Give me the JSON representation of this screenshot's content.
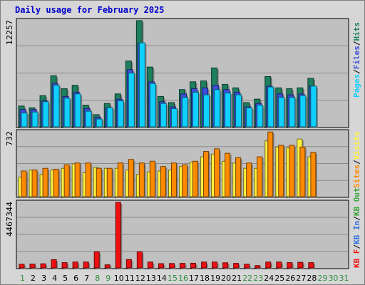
{
  "title": "Daily usage for February 2025",
  "colors": {
    "background": "#d6d6d6",
    "plot": "#c0c0c0",
    "title": "#0000cc",
    "hits": "#1e7f5f",
    "files": "#3d4ddb",
    "pages": "#10d0ff",
    "visits": "#fff23c",
    "sites": "#ff8a00",
    "kbin": "#2f6fdf",
    "kbout": "#3aa53a",
    "kbf": "#ee1010",
    "day_normal": "#2f8f3f",
    "day_weekend": "#2f8f3f",
    "day_future": "#2f8f3f"
  },
  "chart_data": [
    {
      "type": "bar",
      "name": "pages-files-hits",
      "ylim": [
        0,
        12257
      ],
      "y_tick_label": "12257",
      "legend": [
        "Pages",
        "Files",
        "Hits"
      ],
      "legend_separator": "/",
      "categories": [
        "1",
        "2",
        "3",
        "4",
        "5",
        "6",
        "7",
        "8",
        "9",
        "10",
        "11",
        "12",
        "13",
        "14",
        "15",
        "16",
        "17",
        "18",
        "19",
        "20",
        "21",
        "22",
        "23",
        "24",
        "25",
        "26",
        "27",
        "28",
        "29",
        "30",
        "31"
      ],
      "series": [
        {
          "name": "Hits",
          "values": [
            2400,
            2200,
            3600,
            5900,
            4400,
            4800,
            2500,
            1400,
            2700,
            3800,
            7600,
            12257,
            6900,
            3500,
            2800,
            4300,
            5200,
            5300,
            6800,
            4900,
            4500,
            2800,
            3200,
            5800,
            4500,
            4400,
            4500,
            5600,
            0,
            0,
            0
          ]
        },
        {
          "name": "Files",
          "values": [
            2000,
            2000,
            3000,
            5000,
            3500,
            4000,
            2100,
            1100,
            2200,
            3200,
            6600,
            9600,
            5200,
            2900,
            2300,
            3800,
            4400,
            4500,
            4800,
            4300,
            4000,
            2300,
            2700,
            4700,
            3800,
            3700,
            3800,
            4700,
            0,
            0,
            0
          ]
        },
        {
          "name": "Pages",
          "values": [
            1600,
            1700,
            2900,
            4800,
            3300,
            3800,
            1800,
            900,
            2200,
            3000,
            6200,
            9700,
            5000,
            2700,
            2100,
            3400,
            4000,
            3700,
            4300,
            3900,
            3700,
            2200,
            2500,
            4600,
            3400,
            3400,
            3600,
            4700,
            0,
            0,
            0
          ]
        }
      ]
    },
    {
      "type": "bar",
      "name": "visits-sites",
      "ylim": [
        0,
        732
      ],
      "y_tick_label": "732",
      "legend": [
        "Sites",
        "Visits"
      ],
      "legend_separator": "/",
      "categories": [
        "1",
        "2",
        "3",
        "4",
        "5",
        "6",
        "7",
        "8",
        "9",
        "10",
        "11",
        "12",
        "13",
        "14",
        "15",
        "16",
        "17",
        "18",
        "19",
        "20",
        "21",
        "22",
        "23",
        "24",
        "25",
        "26",
        "27",
        "28",
        "29",
        "30",
        "31"
      ],
      "series": [
        {
          "name": "Visits",
          "values": [
            220,
            300,
            250,
            300,
            320,
            370,
            270,
            330,
            320,
            320,
            300,
            250,
            280,
            290,
            300,
            340,
            390,
            450,
            480,
            400,
            380,
            320,
            320,
            630,
            560,
            550,
            650,
            450,
            0,
            0,
            0
          ]
        },
        {
          "name": "Sites",
          "values": [
            290,
            300,
            320,
            310,
            360,
            380,
            380,
            320,
            320,
            380,
            420,
            380,
            400,
            340,
            380,
            360,
            400,
            510,
            540,
            490,
            440,
            380,
            450,
            730,
            580,
            580,
            560,
            500,
            0,
            0,
            0
          ]
        }
      ]
    },
    {
      "type": "bar",
      "name": "kbytes",
      "ylim": [
        0,
        4467344
      ],
      "y_tick_label": "4467344",
      "legend": [
        "KB F",
        "KB In",
        "KB Out"
      ],
      "legend_separator": "/",
      "categories": [
        "1",
        "2",
        "3",
        "4",
        "5",
        "6",
        "7",
        "8",
        "9",
        "10",
        "11",
        "12",
        "13",
        "14",
        "15",
        "16",
        "17",
        "18",
        "19",
        "20",
        "21",
        "22",
        "23",
        "24",
        "25",
        "26",
        "27",
        "28",
        "29",
        "30",
        "31"
      ],
      "series": [
        {
          "name": "KB F",
          "values": [
            250000,
            260000,
            280000,
            560000,
            360000,
            400000,
            400000,
            1100000,
            210000,
            4467344,
            570000,
            1100000,
            400000,
            290000,
            300000,
            310000,
            320000,
            400000,
            400000,
            350000,
            310000,
            250000,
            160000,
            400000,
            400000,
            360000,
            380000,
            360000,
            0,
            0,
            0
          ]
        }
      ]
    }
  ],
  "x_axis": {
    "days": [
      "1",
      "2",
      "3",
      "4",
      "5",
      "6",
      "7",
      "8",
      "9",
      "10",
      "11",
      "12",
      "13",
      "14",
      "15",
      "16",
      "17",
      "18",
      "19",
      "20",
      "21",
      "22",
      "23",
      "24",
      "25",
      "26",
      "27",
      "28",
      "29",
      "30",
      "31"
    ],
    "weekend": [
      1,
      8,
      9,
      15,
      16,
      22,
      23
    ],
    "future": [
      29,
      30,
      31
    ]
  }
}
